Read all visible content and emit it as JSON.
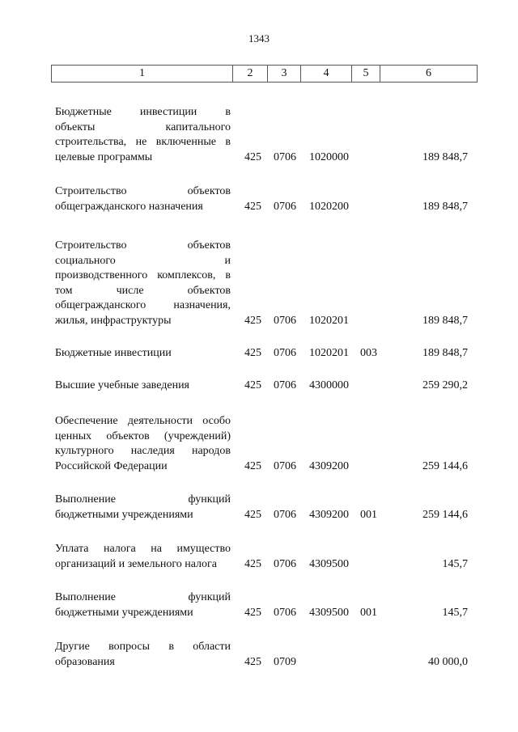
{
  "page_number": "1343",
  "header_columns": [
    "1",
    "2",
    "3",
    "4",
    "5",
    "6"
  ],
  "rows": [
    {
      "lines": [
        "Бюджетные инвестиции в",
        "объекты капитального",
        "строительства, не включенные в",
        "целевые программы"
      ],
      "col2": "425",
      "col3": "0706",
      "col4": "1020000",
      "col5": "",
      "col6": "189 848,7"
    },
    {
      "lines": [
        "Строительство объектов",
        "общегражданского назначения"
      ],
      "col2": "425",
      "col3": "0706",
      "col4": "1020200",
      "col5": "",
      "col6": "189 848,7"
    },
    {
      "lines": [
        "Строительство объектов",
        "социального и",
        "производственного комплексов, в",
        "том числе объектов",
        "общегражданского назначения,",
        "жилья, инфраструктуры"
      ],
      "col2": "425",
      "col3": "0706",
      "col4": "1020201",
      "col5": "",
      "col6": "189 848,7"
    },
    {
      "lines": [
        "Бюджетные инвестиции"
      ],
      "col2": "425",
      "col3": "0706",
      "col4": "1020201",
      "col5": "003",
      "col6": "189 848,7"
    },
    {
      "lines": [
        "Высшие учебные заведения"
      ],
      "col2": "425",
      "col3": "0706",
      "col4": "4300000",
      "col5": "",
      "col6": "259 290,2"
    },
    {
      "lines": [
        "Обеспечение деятельности особо",
        "ценных объектов (учреждений)",
        "культурного наследия народов",
        "Российской Федерации"
      ],
      "col2": "425",
      "col3": "0706",
      "col4": "4309200",
      "col5": "",
      "col6": "259 144,6"
    },
    {
      "lines": [
        "Выполнение функций",
        "бюджетными учреждениями"
      ],
      "col2": "425",
      "col3": "0706",
      "col4": "4309200",
      "col5": "001",
      "col6": "259 144,6"
    },
    {
      "lines": [
        "Уплата налога на имущество",
        "организаций и земельного налога"
      ],
      "col2": "425",
      "col3": "0706",
      "col4": "4309500",
      "col5": "",
      "col6": "145,7"
    },
    {
      "lines": [
        "Выполнение функций",
        "бюджетными учреждениями"
      ],
      "col2": "425",
      "col3": "0706",
      "col4": "4309500",
      "col5": "001",
      "col6": "145,7"
    },
    {
      "lines": [
        "Другие вопросы в области",
        "образования"
      ],
      "col2": "425",
      "col3": "0709",
      "col4": "",
      "col5": "",
      "col6": "40 000,0"
    }
  ]
}
